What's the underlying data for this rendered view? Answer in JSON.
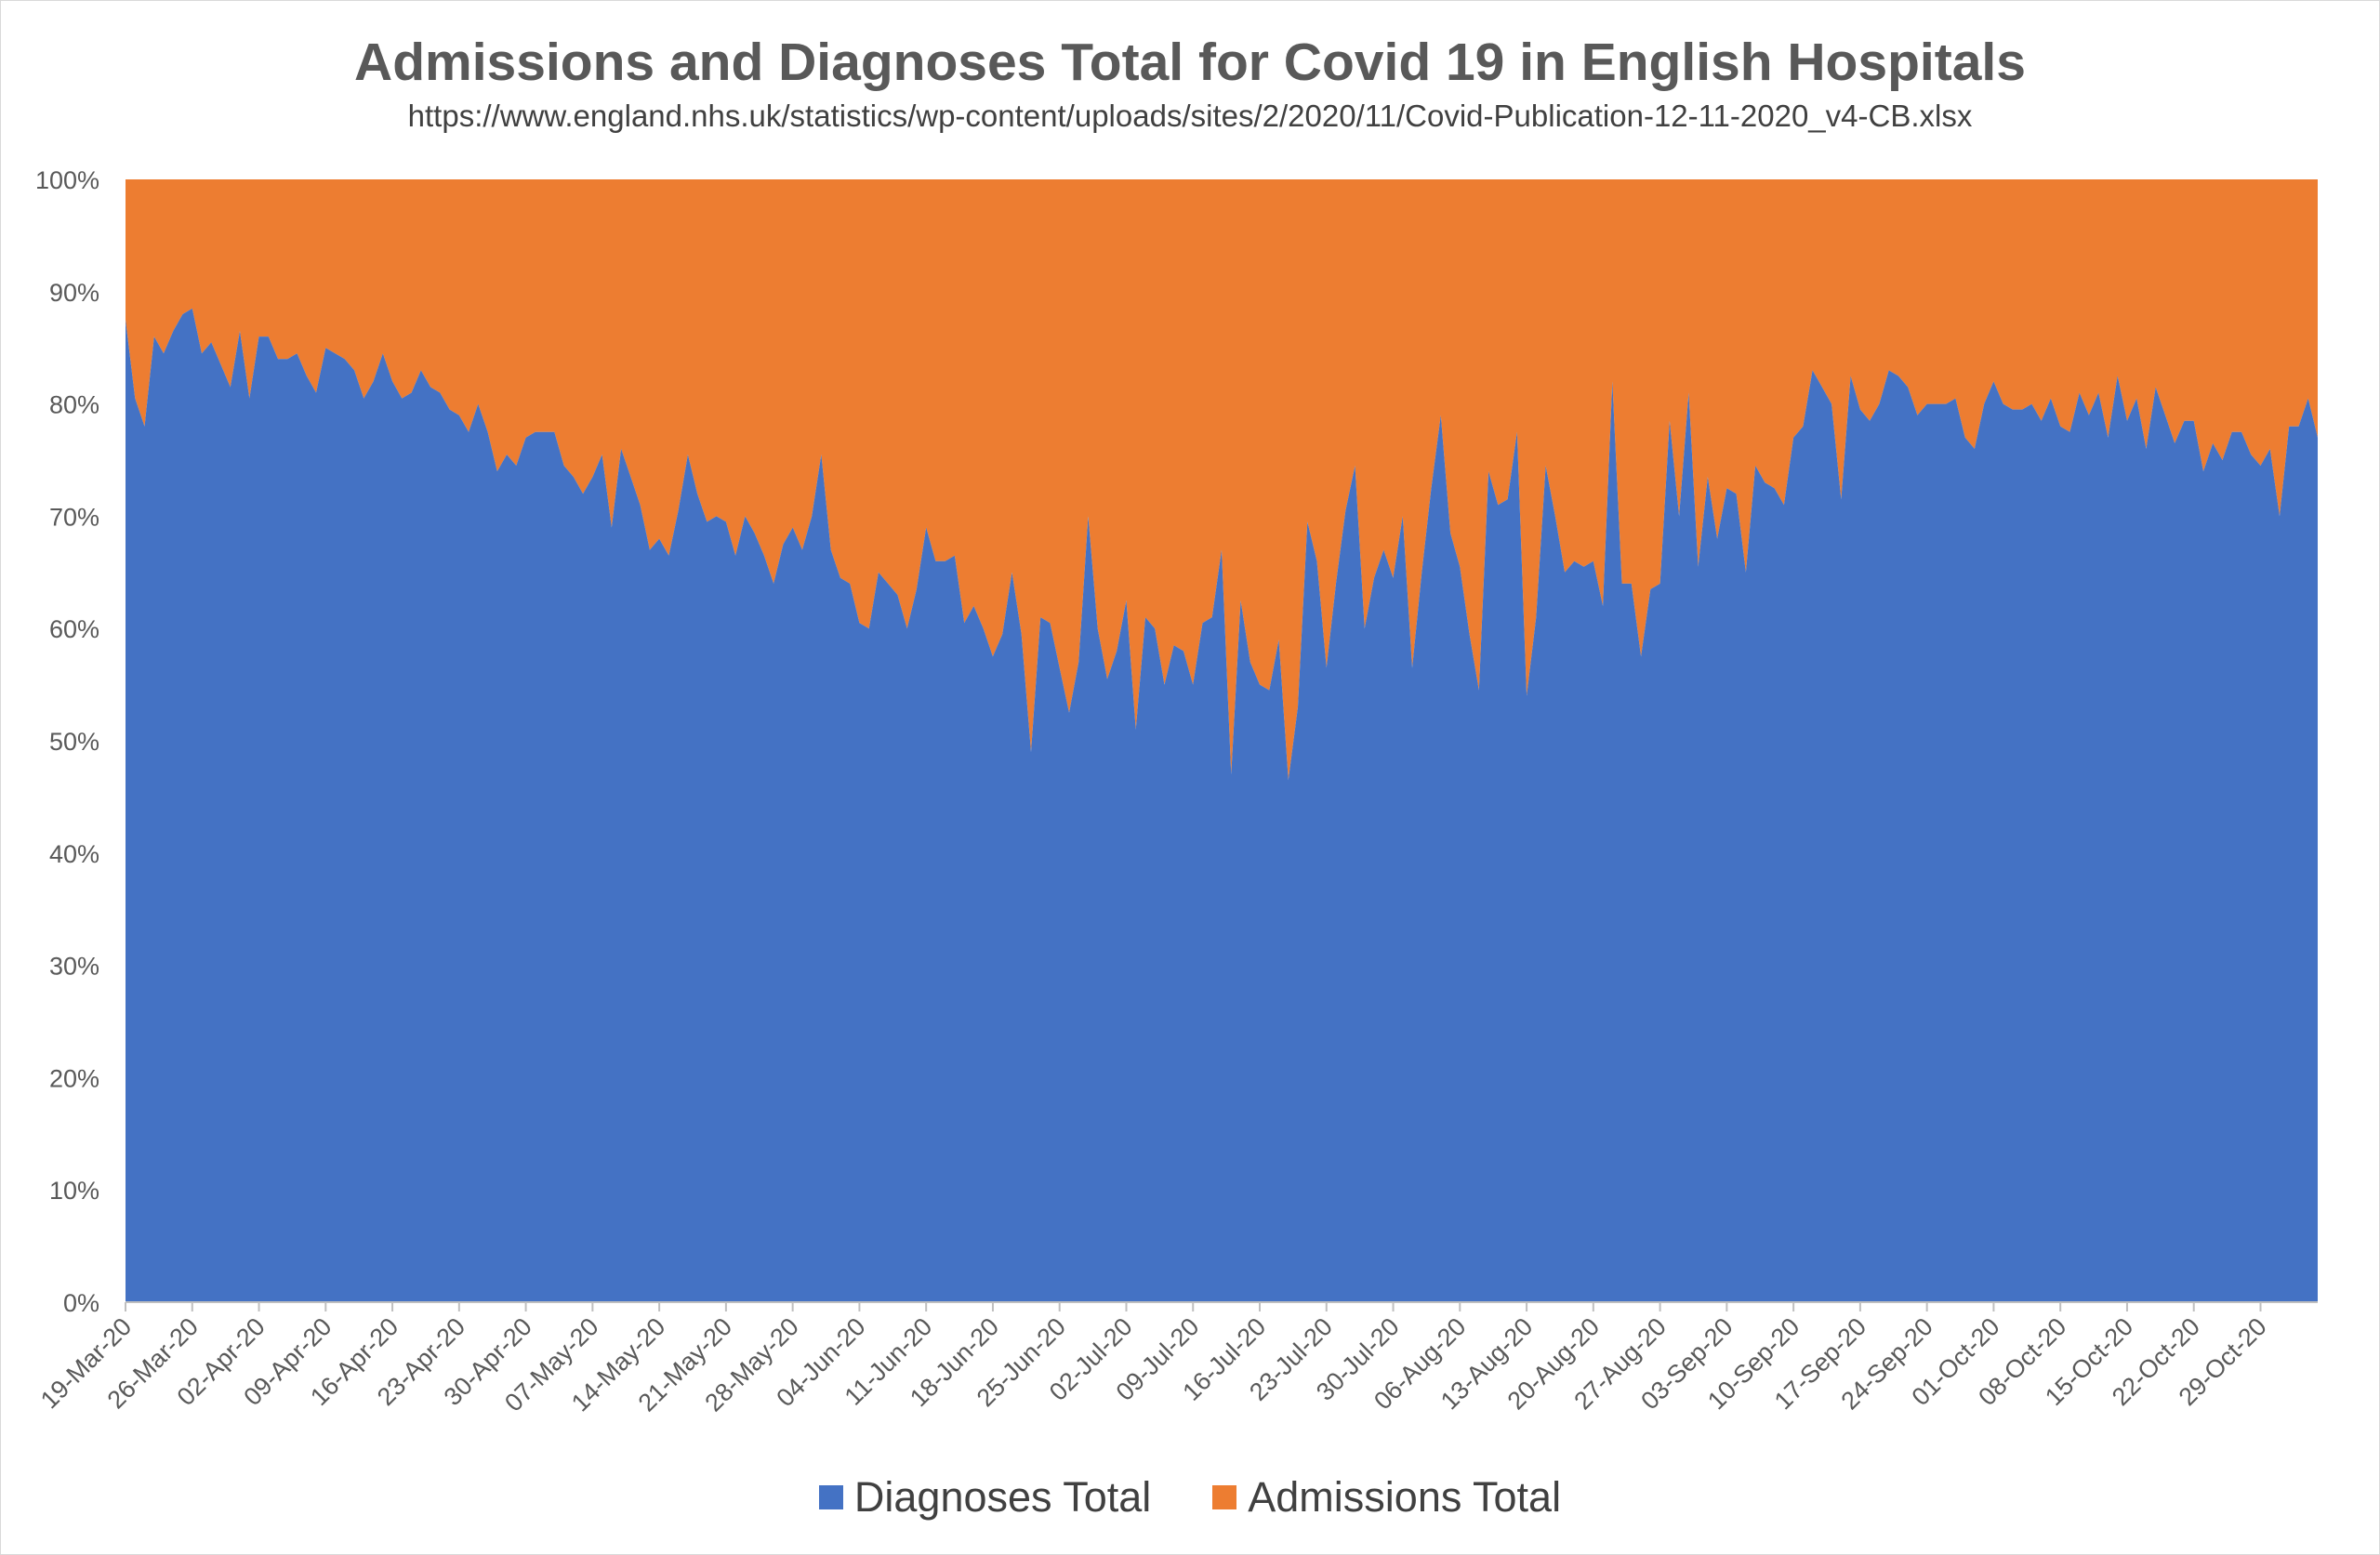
{
  "chart_data": {
    "type": "area",
    "stacked_percent": true,
    "title": "Admissions and Diagnoses Total for Covid 19 in English Hospitals",
    "subtitle": "https://www.england.nhs.uk/statistics/wp-content/uploads/sites/2/2020/11/Covid-Publication-12-11-2020_v4-CB.xlsx",
    "xlabel": "",
    "ylabel": "",
    "ylim": [
      0,
      100
    ],
    "y_ticks": [
      "0%",
      "10%",
      "20%",
      "30%",
      "40%",
      "50%",
      "60%",
      "70%",
      "80%",
      "90%",
      "100%"
    ],
    "x_start": "19-Mar-20",
    "x_end": "07-Nov-20",
    "x_tick_labels": [
      "19-Mar-20",
      "26-Mar-20",
      "02-Apr-20",
      "09-Apr-20",
      "16-Apr-20",
      "23-Apr-20",
      "30-Apr-20",
      "07-May-20",
      "14-May-20",
      "21-May-20",
      "28-May-20",
      "04-Jun-20",
      "11-Jun-20",
      "18-Jun-20",
      "25-Jun-20",
      "02-Jul-20",
      "09-Jul-20",
      "16-Jul-20",
      "23-Jul-20",
      "30-Jul-20",
      "06-Aug-20",
      "13-Aug-20",
      "20-Aug-20",
      "27-Aug-20",
      "03-Sep-20",
      "10-Sep-20",
      "17-Sep-20",
      "24-Sep-20",
      "01-Oct-20",
      "08-Oct-20",
      "15-Oct-20",
      "22-Oct-20",
      "29-Oct-20"
    ],
    "series": [
      {
        "name": "Diagnoses Total",
        "color": "#4472C4",
        "values": [
          87.5,
          80.5,
          78,
          86,
          84.5,
          86.5,
          88,
          88.5,
          84.5,
          85.5,
          83.5,
          81.5,
          86.5,
          80.5,
          86,
          86,
          84,
          84,
          84.5,
          82.5,
          81,
          85,
          84.5,
          84,
          83,
          80.5,
          82,
          84.5,
          82,
          80.5,
          81,
          83,
          81.5,
          81,
          79.5,
          79,
          77.5,
          80,
          77.5,
          74,
          75.5,
          74.5,
          77,
          77.5,
          77.5,
          77.5,
          74.5,
          73.5,
          72,
          73.5,
          75.5,
          69,
          76,
          73.5,
          71,
          67,
          68,
          66.5,
          70.5,
          75.5,
          72,
          69.5,
          70,
          69.5,
          66.5,
          70,
          68.5,
          66.5,
          64,
          67.5,
          69,
          67,
          70,
          75.5,
          67,
          64.5,
          64,
          60.5,
          60,
          65,
          64,
          63,
          60,
          63.5,
          69,
          66,
          66,
          66.5,
          60.5,
          62,
          60,
          57.5,
          59.5,
          65,
          59.5,
          49,
          61,
          60.5,
          56.5,
          52.5,
          57,
          70,
          60,
          55.5,
          58,
          62.5,
          51,
          61,
          60,
          55,
          58.5,
          58,
          55,
          60.5,
          61,
          67,
          47,
          62.5,
          57,
          55,
          54.5,
          59,
          46.5,
          53,
          69.5,
          66,
          56.5,
          64,
          70.5,
          74.5,
          60,
          64.5,
          67,
          64.5,
          70,
          56.5,
          65,
          72.5,
          79,
          68.5,
          65.5,
          59.5,
          54.5,
          74,
          71,
          71.5,
          77.5,
          54,
          61,
          74.5,
          70,
          65,
          66,
          65.5,
          66,
          62,
          82,
          64,
          64,
          57.5,
          63.5,
          64,
          78.5,
          70,
          81,
          65.5,
          73.5,
          68,
          72.5,
          72,
          65,
          74.5,
          73,
          72.5,
          71,
          77,
          78,
          83,
          81.5,
          80,
          71.5,
          82.5,
          79.5,
          78.5,
          80,
          83,
          82.5,
          81.5,
          79,
          80,
          80,
          80,
          80.5,
          77,
          76,
          80,
          82,
          80,
          79.5,
          79.5,
          80,
          78.5,
          80.5,
          78,
          77.5,
          81,
          79,
          81,
          77,
          82.5,
          78.5,
          80.5,
          76,
          81.5,
          79,
          76.5,
          78.5,
          78.5,
          74,
          76.5,
          75,
          77.5,
          77.5,
          75.5,
          74.5,
          76,
          70,
          78,
          78,
          80.5,
          77
        ]
      },
      {
        "name": "Admissions Total",
        "color": "#ED7D31",
        "values": []
      }
    ],
    "legend_position": "bottom",
    "grid": false
  },
  "legend": {
    "diagnoses_label": "Diagnoses Total",
    "admissions_label": "Admissions Total",
    "diagnoses_color": "#4472C4",
    "admissions_color": "#ED7D31"
  }
}
